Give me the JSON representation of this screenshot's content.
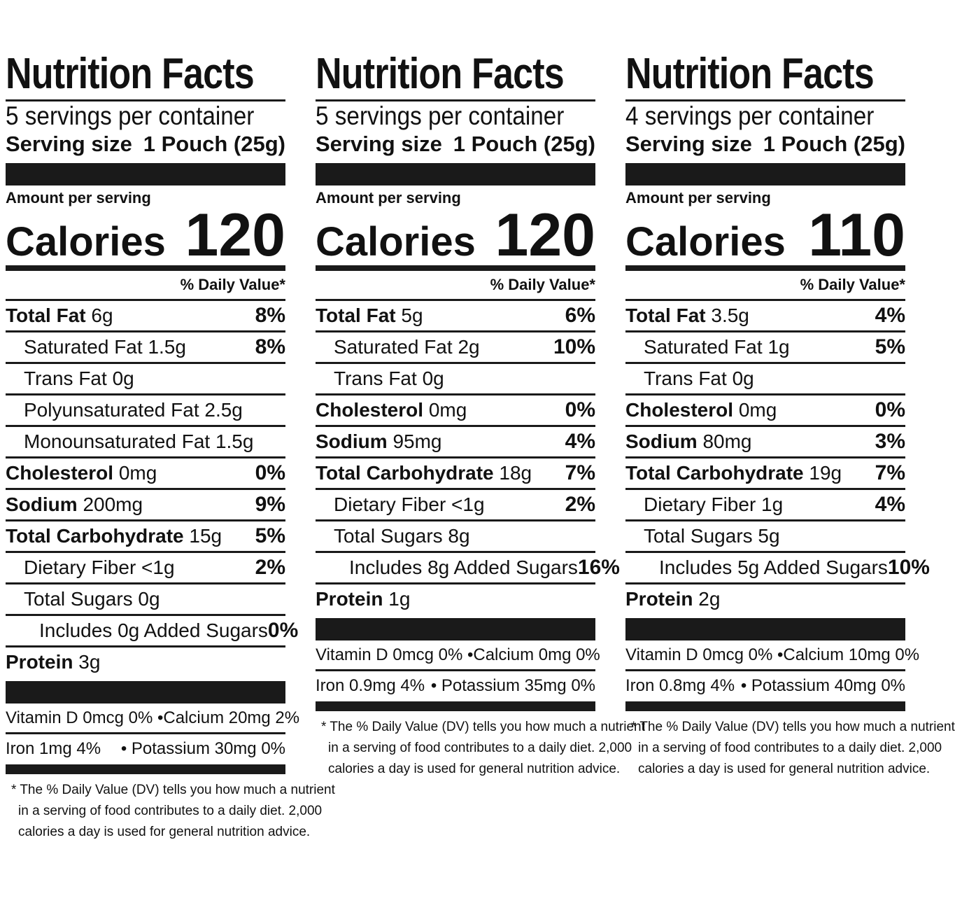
{
  "labels": [
    {
      "title": "Nutrition Facts",
      "servings": "5 servings per container",
      "serving_size_label": "Serving size",
      "serving_size_value": "1 Pouch (25g)",
      "amount_per_serving": "Amount per serving",
      "calories_label": "Calories",
      "calories_value": "120",
      "daily_value_header": "% Daily Value*",
      "nutrients": [
        {
          "name": "Total Fat",
          "amount": "6g",
          "dv": "8%",
          "bold": true,
          "indent": 0
        },
        {
          "name": "Saturated Fat",
          "amount": "1.5g",
          "dv": "8%",
          "bold": false,
          "indent": 1
        },
        {
          "name": "Trans Fat",
          "amount": "0g",
          "dv": "",
          "bold": false,
          "indent": 1
        },
        {
          "name": "Polyunsaturated Fat",
          "amount": "2.5g",
          "dv": "",
          "bold": false,
          "indent": 1
        },
        {
          "name": "Monounsaturated Fat",
          "amount": "1.5g",
          "dv": "",
          "bold": false,
          "indent": 1
        },
        {
          "name": "Cholesterol",
          "amount": "0mg",
          "dv": "0%",
          "bold": true,
          "indent": 0
        },
        {
          "name": "Sodium",
          "amount": "200mg",
          "dv": "9%",
          "bold": true,
          "indent": 0
        },
        {
          "name": "Total Carbohydrate",
          "amount": "15g",
          "dv": "5%",
          "bold": true,
          "indent": 0
        },
        {
          "name": "Dietary Fiber",
          "amount": "<1g",
          "dv": "2%",
          "bold": false,
          "indent": 1
        },
        {
          "name": "Total Sugars",
          "amount": "0g",
          "dv": "",
          "bold": false,
          "indent": 1
        },
        {
          "name": "Includes 0g Added Sugars",
          "amount": "",
          "dv": "0%",
          "bold": false,
          "indent": 2
        },
        {
          "name": "Protein",
          "amount": "3g",
          "dv": "",
          "bold": true,
          "indent": 0
        }
      ],
      "vitamins": [
        {
          "left": "Vitamin D 0mcg 0% •",
          "right": "Calcium 20mg 2%"
        },
        {
          "left": "Iron 1mg 4%",
          "right": "• Potassium 30mg 0%"
        }
      ],
      "footnote": [
        "* The % Daily Value (DV) tells you how much a nutrient",
        "in a serving of food contributes to a daily diet. 2,000",
        "calories a day is used for general nutrition advice."
      ]
    },
    {
      "title": "Nutrition Facts",
      "servings": "5 servings per container",
      "serving_size_label": "Serving size",
      "serving_size_value": "1 Pouch (25g)",
      "amount_per_serving": "Amount per serving",
      "calories_label": "Calories",
      "calories_value": "120",
      "daily_value_header": "% Daily Value*",
      "nutrients": [
        {
          "name": "Total Fat",
          "amount": "5g",
          "dv": "6%",
          "bold": true,
          "indent": 0
        },
        {
          "name": "Saturated Fat",
          "amount": "2g",
          "dv": "10%",
          "bold": false,
          "indent": 1
        },
        {
          "name": "Trans Fat",
          "amount": "0g",
          "dv": "",
          "bold": false,
          "indent": 1
        },
        {
          "name": "Cholesterol",
          "amount": "0mg",
          "dv": "0%",
          "bold": true,
          "indent": 0
        },
        {
          "name": "Sodium",
          "amount": "95mg",
          "dv": "4%",
          "bold": true,
          "indent": 0
        },
        {
          "name": "Total Carbohydrate",
          "amount": "18g",
          "dv": "7%",
          "bold": true,
          "indent": 0
        },
        {
          "name": "Dietary Fiber",
          "amount": "<1g",
          "dv": "2%",
          "bold": false,
          "indent": 1
        },
        {
          "name": "Total Sugars",
          "amount": "8g",
          "dv": "",
          "bold": false,
          "indent": 1
        },
        {
          "name": "Includes 8g Added Sugars",
          "amount": "",
          "dv": "16%",
          "bold": false,
          "indent": 2
        },
        {
          "name": "Protein",
          "amount": "1g",
          "dv": "",
          "bold": true,
          "indent": 0
        }
      ],
      "vitamins": [
        {
          "left": "Vitamin D 0mcg 0% •",
          "right": "Calcium 0mg 0%"
        },
        {
          "left": "Iron 0.9mg 4%",
          "right": "• Potassium 35mg 0%"
        }
      ],
      "footnote": [
        "* The % Daily Value (DV) tells you how much a nutrient",
        "in a serving of food contributes to a daily diet. 2,000",
        "calories a day is used for general nutrition advice."
      ]
    },
    {
      "title": "Nutrition Facts",
      "servings": "4 servings per container",
      "serving_size_label": "Serving size",
      "serving_size_value": "1 Pouch (25g)",
      "amount_per_serving": "Amount per serving",
      "calories_label": "Calories",
      "calories_value": "110",
      "daily_value_header": "% Daily Value*",
      "nutrients": [
        {
          "name": "Total Fat",
          "amount": "3.5g",
          "dv": "4%",
          "bold": true,
          "indent": 0
        },
        {
          "name": "Saturated Fat",
          "amount": "1g",
          "dv": "5%",
          "bold": false,
          "indent": 1
        },
        {
          "name": "Trans Fat",
          "amount": "0g",
          "dv": "",
          "bold": false,
          "indent": 1
        },
        {
          "name": "Cholesterol",
          "amount": "0mg",
          "dv": "0%",
          "bold": true,
          "indent": 0
        },
        {
          "name": "Sodium",
          "amount": "80mg",
          "dv": "3%",
          "bold": true,
          "indent": 0
        },
        {
          "name": "Total Carbohydrate",
          "amount": "19g",
          "dv": "7%",
          "bold": true,
          "indent": 0
        },
        {
          "name": "Dietary Fiber",
          "amount": "1g",
          "dv": "4%",
          "bold": false,
          "indent": 1
        },
        {
          "name": "Total Sugars",
          "amount": "5g",
          "dv": "",
          "bold": false,
          "indent": 1
        },
        {
          "name": "Includes 5g Added Sugars",
          "amount": "",
          "dv": "10%",
          "bold": false,
          "indent": 2
        },
        {
          "name": "Protein",
          "amount": "2g",
          "dv": "",
          "bold": true,
          "indent": 0
        }
      ],
      "vitamins": [
        {
          "left": "Vitamin D 0mcg 0% •",
          "right": "Calcium 10mg 0%"
        },
        {
          "left": "Iron 0.8mg 4%",
          "right": "• Potassium 40mg 0%"
        }
      ],
      "footnote": [
        "* The % Daily Value (DV) tells you how much a nutrient",
        "in a serving of food contributes to a daily diet. 2,000",
        "calories a day is used for general nutrition advice."
      ]
    }
  ]
}
